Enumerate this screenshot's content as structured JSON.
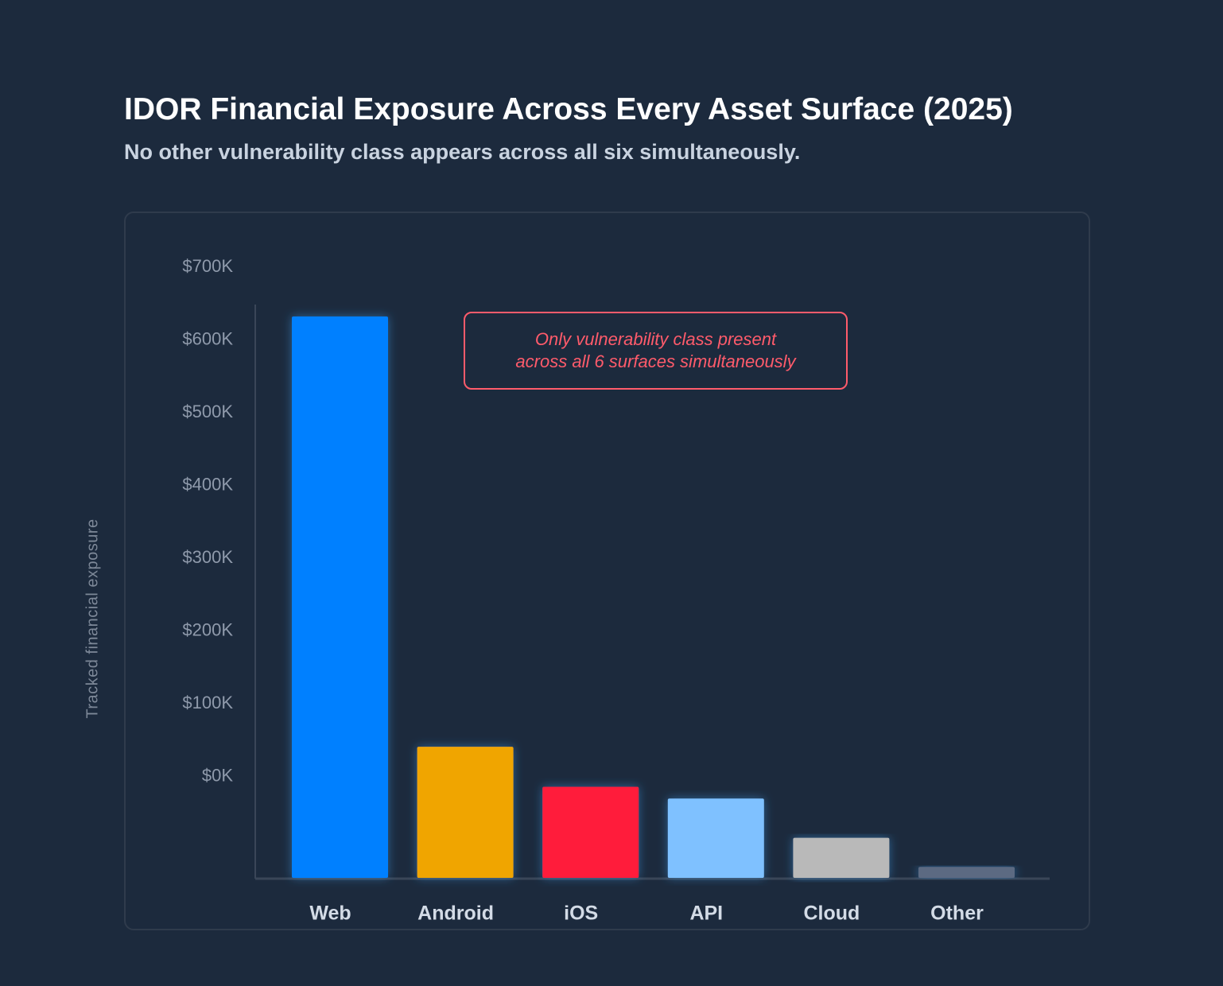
{
  "header": {
    "title": "IDOR Financial Exposure Across Every Asset Surface (2025)",
    "subtitle": "No other vulnerability class appears across all six simultaneously."
  },
  "annotation": {
    "line1": "Only vulnerability class present",
    "line2": "across all 6 surfaces simultaneously"
  },
  "chart_data": {
    "type": "bar",
    "title": "IDOR Financial Exposure Across Every Asset Surface (2025)",
    "subtitle": "No other vulnerability class appears across all six simultaneously.",
    "xlabel": "",
    "ylabel": "Tracked financial exposure",
    "categories": [
      "Web",
      "Android",
      "iOS",
      "API",
      "Cloud",
      "Other"
    ],
    "values": [
      771000,
      180000,
      125000,
      109000,
      55000,
      15000
    ],
    "y_tick_labels": [
      "$700K",
      "$600K",
      "$500K",
      "$400K",
      "$300K",
      "$200K",
      "$100K",
      "$0K"
    ],
    "colors": [
      "#0080ff",
      "#f0a500",
      "#ff1f3a",
      "#7fc1ff",
      "#b9b9b9",
      "#5b6b82"
    ],
    "grid": false,
    "legend": "none"
  }
}
